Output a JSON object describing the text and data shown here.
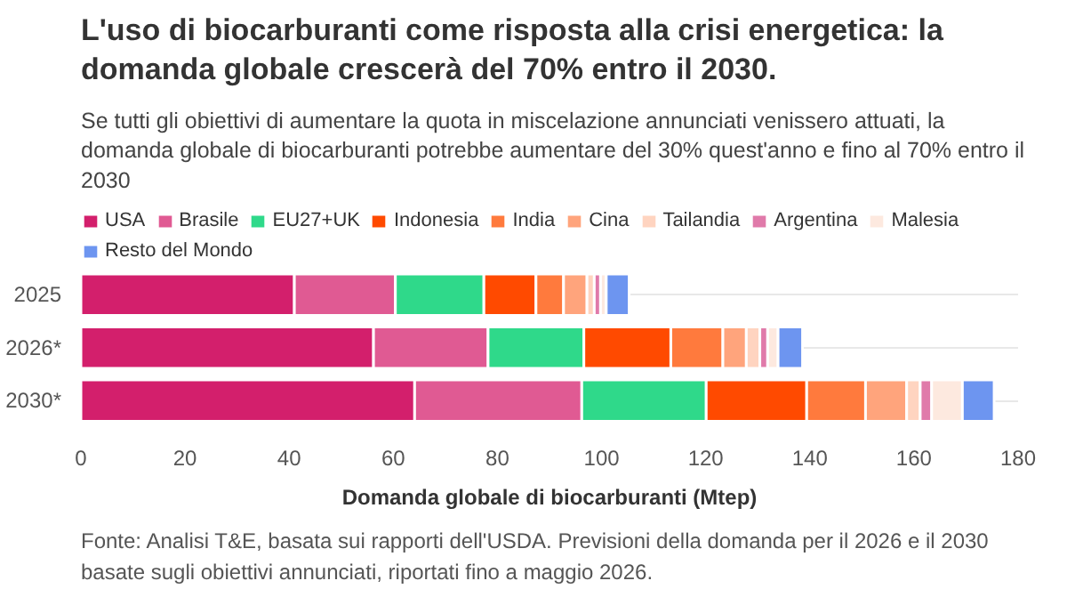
{
  "chart_data": {
    "type": "bar",
    "orientation": "horizontal",
    "stacked": true,
    "title": "L'uso di biocarburanti come risposta alla crisi energetica: la domanda globale crescerà del 70% entro il 2030.",
    "subtitle": "Se tutti gli obiettivi di aumentare la quota in miscelazione annunciati venissero attuati, la domanda globale di biocarburanti potrebbe aumentare del 30% quest'anno e fino al 70% entro il 2030",
    "xlabel": "Domanda globale di biocarburanti (Mtep)",
    "annotations": [
      "Fonte: Analisi T&E, basata sui rapporti dell'USDA. Previsioni della domanda per il 2026 e il 2030 basate sugli obiettivi annunciati, riportati fino a maggio 2026."
    ],
    "categories": [
      "2025",
      "2026*",
      "2030*"
    ],
    "series": [
      {
        "name": "USA",
        "color": "#d31f6c",
        "values": [
          41,
          56.2,
          64.1
        ]
      },
      {
        "name": "Brasile",
        "color": "#e05a93",
        "values": [
          19.4,
          22,
          32.1
        ]
      },
      {
        "name": "EU27+UK",
        "color": "#2fd98a",
        "values": [
          17,
          18.4,
          23.9
        ]
      },
      {
        "name": "Indonesia",
        "color": "#ff4a00",
        "values": [
          10,
          16.7,
          19.3
        ]
      },
      {
        "name": "India",
        "color": "#ff7a3d",
        "values": [
          5.3,
          10,
          11.3
        ]
      },
      {
        "name": "Cina",
        "color": "#ffa47c",
        "values": [
          4.5,
          4.5,
          7.9
        ]
      },
      {
        "name": "Tailandia",
        "color": "#ffd4c0",
        "values": [
          1.4,
          2.6,
          2.6
        ]
      },
      {
        "name": "Argentina",
        "color": "#e07aaa",
        "values": [
          1.2,
          1.5,
          2.2
        ]
      },
      {
        "name": "Malesia",
        "color": "#fde9df",
        "values": [
          1.1,
          2,
          5.9
        ]
      },
      {
        "name": "Resto del Mondo",
        "color": "#6d95f0",
        "values": [
          4.4,
          4.7,
          6.1
        ]
      }
    ],
    "xlim": [
      0,
      180
    ],
    "xticks": [
      0,
      20,
      40,
      60,
      80,
      100,
      120,
      140,
      160,
      180
    ],
    "grid": "y",
    "legend": "top"
  }
}
